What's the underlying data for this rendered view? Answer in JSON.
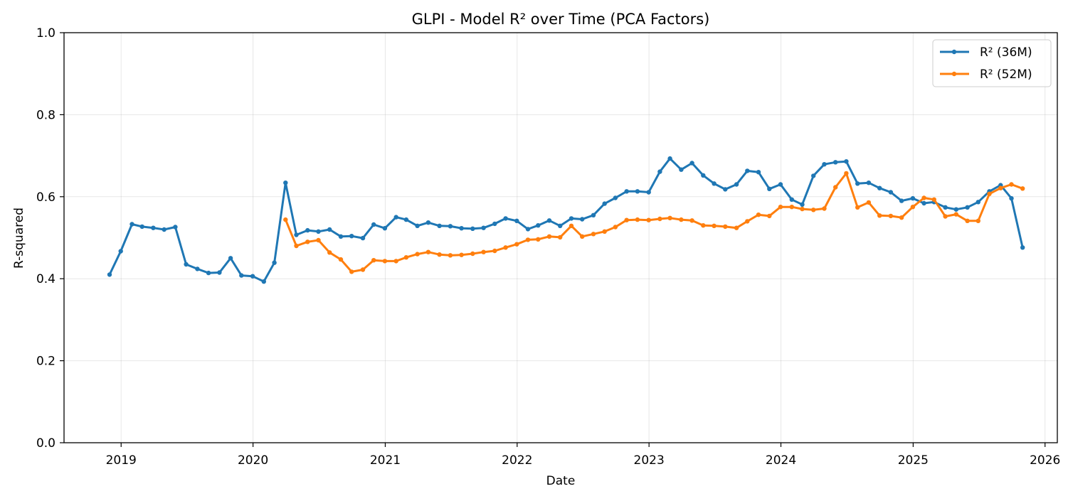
{
  "chart_data": {
    "type": "line",
    "title": "GLPI - Model R² over Time (PCA Factors)",
    "xlabel": "Date",
    "ylabel": "R-squared",
    "xlim": [
      "2018-07-27",
      "2026-02-04"
    ],
    "ylim": [
      0,
      1
    ],
    "x_ticks": [
      "2019",
      "2020",
      "2021",
      "2022",
      "2023",
      "2024",
      "2025",
      "2026"
    ],
    "y_ticks": [
      "0.0",
      "0.2",
      "0.4",
      "0.6",
      "0.8",
      "1.0"
    ],
    "grid": true,
    "legend_position": "top-right",
    "series": [
      {
        "name": "R² (36M)",
        "color": "#1f77b4",
        "x": [
          "2018-11-30",
          "2018-12-31",
          "2019-01-31",
          "2019-02-28",
          "2019-03-31",
          "2019-04-30",
          "2019-05-31",
          "2019-06-30",
          "2019-07-31",
          "2019-08-31",
          "2019-09-30",
          "2019-10-31",
          "2019-11-30",
          "2019-12-31",
          "2020-01-31",
          "2020-02-29",
          "2020-03-31",
          "2020-04-30",
          "2020-05-31",
          "2020-06-30",
          "2020-07-31",
          "2020-08-31",
          "2020-09-30",
          "2020-10-31",
          "2020-11-30",
          "2020-12-31",
          "2021-01-31",
          "2021-02-28",
          "2021-03-31",
          "2021-04-30",
          "2021-05-31",
          "2021-06-30",
          "2021-07-31",
          "2021-08-31",
          "2021-09-30",
          "2021-10-31",
          "2021-11-30",
          "2021-12-31",
          "2022-01-31",
          "2022-02-28",
          "2022-03-31",
          "2022-04-30",
          "2022-05-31",
          "2022-06-30",
          "2022-07-31",
          "2022-08-31",
          "2022-09-30",
          "2022-10-31",
          "2022-11-30",
          "2022-12-31",
          "2023-01-31",
          "2023-02-28",
          "2023-03-31",
          "2023-04-30",
          "2023-05-31",
          "2023-06-30",
          "2023-07-31",
          "2023-08-31",
          "2023-09-30",
          "2023-10-31",
          "2023-11-30",
          "2023-12-31",
          "2024-01-31",
          "2024-02-29",
          "2024-03-31",
          "2024-04-30",
          "2024-05-31",
          "2024-06-30",
          "2024-07-31",
          "2024-08-31",
          "2024-09-30",
          "2024-10-31",
          "2024-11-30",
          "2024-12-31",
          "2025-01-31",
          "2025-02-28",
          "2025-03-31",
          "2025-04-30",
          "2025-05-31",
          "2025-06-30",
          "2025-07-31",
          "2025-08-31",
          "2025-09-30",
          "2025-10-31"
        ],
        "values": [
          0.41,
          0.467,
          0.533,
          0.527,
          0.524,
          0.52,
          0.526,
          0.435,
          0.424,
          0.414,
          0.415,
          0.45,
          0.408,
          0.406,
          0.393,
          0.439,
          0.634,
          0.507,
          0.518,
          0.515,
          0.52,
          0.503,
          0.504,
          0.499,
          0.532,
          0.523,
          0.55,
          0.544,
          0.529,
          0.537,
          0.529,
          0.528,
          0.523,
          0.522,
          0.524,
          0.534,
          0.547,
          0.541,
          0.521,
          0.53,
          0.542,
          0.529,
          0.547,
          0.545,
          0.555,
          0.583,
          0.597,
          0.613,
          0.613,
          0.611,
          0.661,
          0.693,
          0.666,
          0.682,
          0.652,
          0.632,
          0.618,
          0.63,
          0.663,
          0.66,
          0.619,
          0.63,
          0.593,
          0.581,
          0.651,
          0.679,
          0.684,
          0.686,
          0.632,
          0.634,
          0.621,
          0.611,
          0.59,
          0.596,
          0.584,
          0.587,
          0.574,
          0.569,
          0.574,
          0.587,
          0.613,
          0.628,
          0.596,
          0.476
        ]
      },
      {
        "name": "R² (52M)",
        "color": "#ff7f0e",
        "x": [
          "2020-03-31",
          "2020-04-30",
          "2020-05-31",
          "2020-06-30",
          "2020-07-31",
          "2020-08-31",
          "2020-09-30",
          "2020-10-31",
          "2020-11-30",
          "2020-12-31",
          "2021-01-31",
          "2021-02-28",
          "2021-03-31",
          "2021-04-30",
          "2021-05-31",
          "2021-06-30",
          "2021-07-31",
          "2021-08-31",
          "2021-09-30",
          "2021-10-31",
          "2021-11-30",
          "2021-12-31",
          "2022-01-31",
          "2022-02-28",
          "2022-03-31",
          "2022-04-30",
          "2022-05-31",
          "2022-06-30",
          "2022-07-31",
          "2022-08-31",
          "2022-09-30",
          "2022-10-31",
          "2022-11-30",
          "2022-12-31",
          "2023-01-31",
          "2023-02-28",
          "2023-03-31",
          "2023-04-30",
          "2023-05-31",
          "2023-06-30",
          "2023-07-31",
          "2023-08-31",
          "2023-09-30",
          "2023-10-31",
          "2023-11-30",
          "2023-12-31",
          "2024-01-31",
          "2024-02-29",
          "2024-03-31",
          "2024-04-30",
          "2024-05-31",
          "2024-06-30",
          "2024-07-31",
          "2024-08-31",
          "2024-09-30",
          "2024-10-31",
          "2024-11-30",
          "2024-12-31",
          "2025-01-31",
          "2025-02-28",
          "2025-03-31",
          "2025-04-30",
          "2025-05-31",
          "2025-06-30",
          "2025-07-31",
          "2025-08-31",
          "2025-09-30",
          "2025-10-31"
        ],
        "values": [
          0.544,
          0.48,
          0.49,
          0.494,
          0.464,
          0.447,
          0.417,
          0.422,
          0.445,
          0.443,
          0.443,
          0.452,
          0.46,
          0.465,
          0.459,
          0.457,
          0.458,
          0.461,
          0.465,
          0.468,
          0.476,
          0.484,
          0.495,
          0.496,
          0.503,
          0.501,
          0.529,
          0.503,
          0.509,
          0.515,
          0.526,
          0.543,
          0.544,
          0.543,
          0.546,
          0.548,
          0.544,
          0.542,
          0.53,
          0.529,
          0.527,
          0.524,
          0.54,
          0.556,
          0.553,
          0.575,
          0.575,
          0.57,
          0.568,
          0.571,
          0.623,
          0.657,
          0.574,
          0.586,
          0.554,
          0.553,
          0.549,
          0.575,
          0.597,
          0.593,
          0.552,
          0.557,
          0.541,
          0.541,
          0.607,
          0.621,
          0.63,
          0.62
        ]
      }
    ]
  }
}
